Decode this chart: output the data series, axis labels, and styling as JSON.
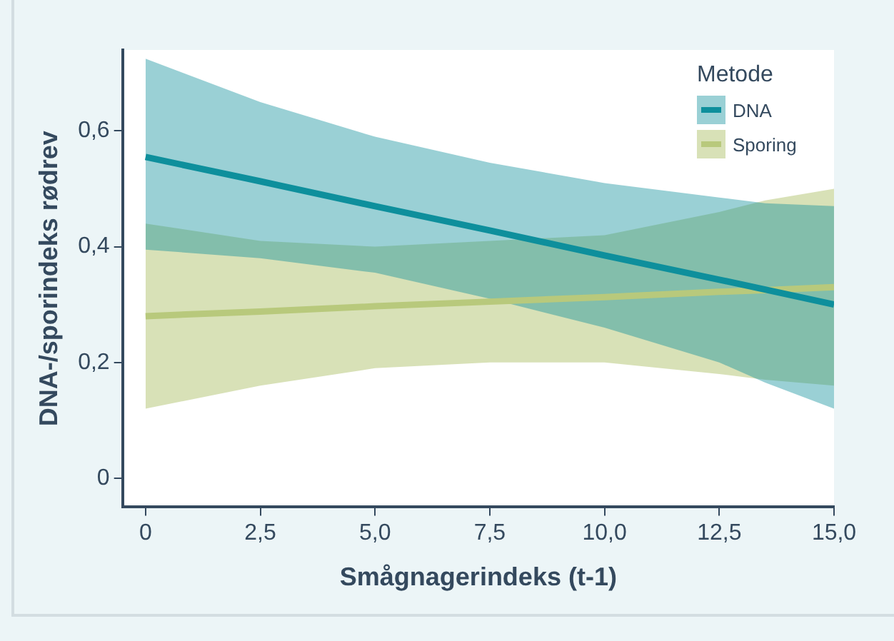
{
  "chart_data": {
    "type": "line",
    "xlabel": "Smågnagerindeks (t-1)",
    "ylabel": "DNA-/sporindeks rødrev",
    "legend_title": "Metode",
    "legend": "top right",
    "grid": false,
    "marker": "none",
    "line_style": "solid",
    "x": [
      0,
      2.5,
      5,
      7.5,
      10,
      12.5,
      13.5,
      15
    ],
    "xlim": [
      -0.5,
      15
    ],
    "xticks": [
      0,
      {
        "value": 2.5,
        "label": "2,5"
      },
      {
        "value": 5,
        "label": "5,0"
      },
      {
        "value": 7.5,
        "label": "7,5"
      },
      {
        "value": 10,
        "label": "10,0"
      },
      {
        "value": 12.5,
        "label": "12,5"
      },
      {
        "value": 15,
        "label": "15,0"
      }
    ],
    "ylim": [
      -0.05,
      0.74
    ],
    "yticks": [
      0,
      {
        "value": 0.2,
        "label": "0,2"
      },
      {
        "value": 0.4,
        "label": "0,4"
      },
      {
        "value": 0.6,
        "label": "0,6"
      }
    ],
    "series": [
      {
        "name": "DNA",
        "color": "#0e8f9c",
        "values": [
          0.555,
          0.513,
          0.47,
          0.428,
          0.385,
          0.343,
          0.326,
          0.3
        ],
        "lower": [
          0.395,
          0.38,
          0.355,
          0.31,
          0.26,
          0.2,
          0.165,
          0.12
        ],
        "upper": [
          0.725,
          0.65,
          0.59,
          0.545,
          0.51,
          0.485,
          0.475,
          0.47
        ]
      },
      {
        "name": "Sporing",
        "color": "#b8c97c",
        "values": [
          0.28,
          0.288,
          0.297,
          0.305,
          0.313,
          0.322,
          0.325,
          0.33
        ],
        "lower": [
          0.12,
          0.16,
          0.19,
          0.2,
          0.2,
          0.18,
          0.17,
          0.16
        ],
        "upper": [
          0.44,
          0.41,
          0.4,
          0.41,
          0.42,
          0.46,
          0.48,
          0.5
        ]
      }
    ]
  }
}
